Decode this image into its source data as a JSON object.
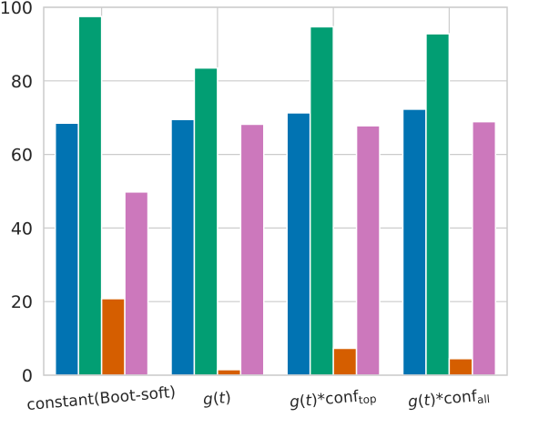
{
  "chart_data": {
    "type": "bar",
    "title": "",
    "xlabel": "",
    "ylabel": "",
    "ylim": [
      0,
      100
    ],
    "yticks": [
      0,
      20,
      40,
      60,
      80,
      100
    ],
    "grid": true,
    "categories": [
      {
        "parts": [
          {
            "text": "constant(Boot-soft)",
            "italic": false
          }
        ]
      },
      {
        "parts": [
          {
            "text": "g",
            "italic": true
          },
          {
            "text": "(",
            "italic": false
          },
          {
            "text": "t",
            "italic": true
          },
          {
            "text": ")",
            "italic": false
          }
        ]
      },
      {
        "parts": [
          {
            "text": "g",
            "italic": true
          },
          {
            "text": "(",
            "italic": false
          },
          {
            "text": "t",
            "italic": true
          },
          {
            "text": ")*conf",
            "italic": false
          }
        ],
        "subscript": "top"
      },
      {
        "parts": [
          {
            "text": "g",
            "italic": true
          },
          {
            "text": "(",
            "italic": false
          },
          {
            "text": "t",
            "italic": true
          },
          {
            "text": ")*conf",
            "italic": false
          }
        ],
        "subscript": "all"
      }
    ],
    "series": [
      {
        "color": "#0173b2",
        "values": [
          68.5,
          69.5,
          71.3,
          72.3
        ]
      },
      {
        "color": "#029e73",
        "values": [
          97.5,
          83.5,
          94.7,
          92.8
        ]
      },
      {
        "color": "#d55e00",
        "values": [
          20.8,
          1.5,
          7.3,
          4.5
        ]
      },
      {
        "color": "#cc78bc",
        "values": [
          49.8,
          68.2,
          67.8,
          68.9
        ]
      }
    ]
  }
}
